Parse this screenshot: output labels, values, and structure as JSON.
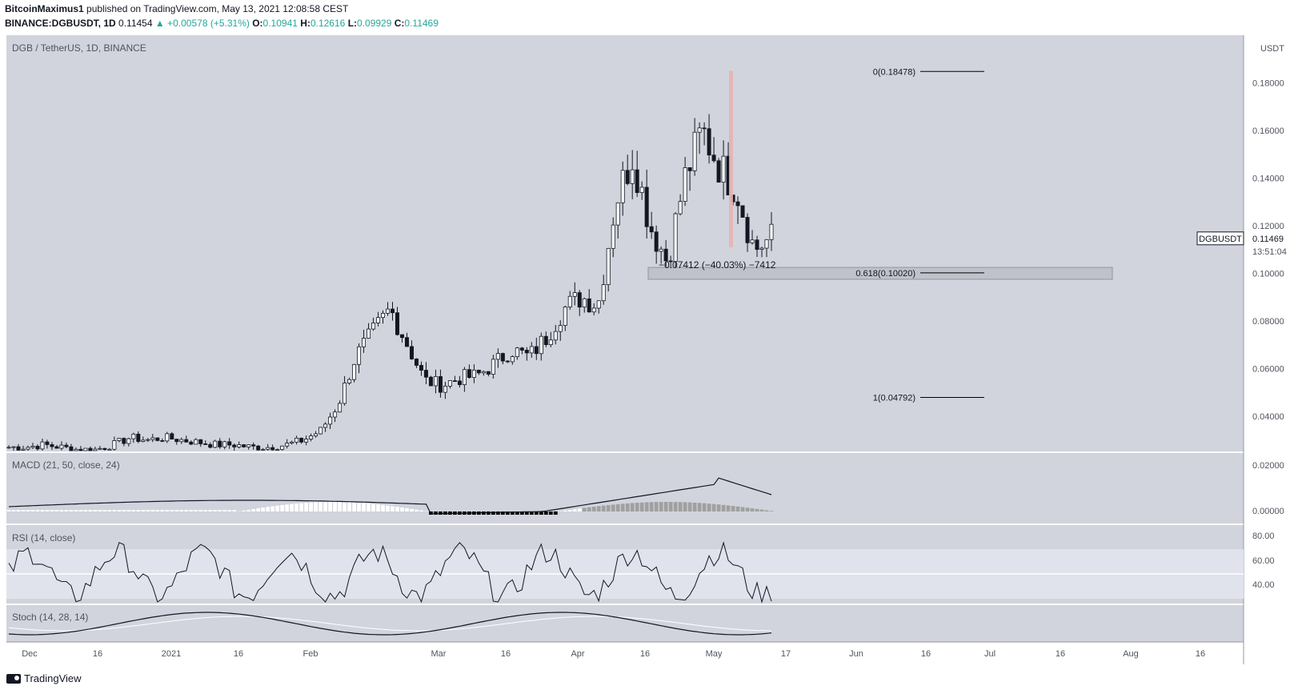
{
  "header": {
    "publisher": "BitcoinMaximus1",
    "published_text": " published on TradingView.com, May 13, 2021 12:08:58 CEST",
    "symbol": "BINANCE:DGBUSDT, 1D",
    "last": "0.11454",
    "change": "+0.00578 (+5.31%)",
    "open_label": "O:",
    "open": "0.10941",
    "high_label": "H:",
    "high": "0.12616",
    "low_label": "L:",
    "low": "0.09929",
    "close_label": "C:",
    "close": "0.11469",
    "change_arrow": "▲"
  },
  "footer": {
    "brand": "TradingView"
  },
  "colors": {
    "panel_bg": "#d1d4dc",
    "candle": "#131722",
    "highlight_bar": "#e6b3b3",
    "hist_pos_light": "#ffffff",
    "hist_pos_dark": "#a0a0a0",
    "hist_neg": "#000000",
    "rsi_band": "#e0e3eb"
  },
  "chart_data": {
    "type": "candlestick",
    "title": "DGB / TetherUS, 1D, BINANCE",
    "currency": "USDT",
    "price_axis": {
      "ticks": [
        "0.18000",
        "0.16000",
        "0.14000",
        "0.12000",
        "0.10000",
        "0.08000",
        "0.06000",
        "0.04000"
      ],
      "ylim": [
        0.028,
        0.19
      ]
    },
    "x_ticks": [
      "Dec",
      "16",
      "2021",
      "16",
      "Feb",
      "Mar",
      "16",
      "Apr",
      "16",
      "May",
      "17",
      "Jun",
      "16",
      "Jul",
      "16",
      "Aug",
      "16"
    ],
    "price_label": {
      "symbol": "DGBUSDT",
      "value": "0.11469",
      "countdown": "13:51:04"
    },
    "fib_levels": [
      {
        "label": "0(0.18478)",
        "value": 0.18478
      },
      {
        "label": "0.618(0.10020)",
        "value": 0.1002
      },
      {
        "label": "1(0.04792)",
        "value": 0.04792
      }
    ],
    "measure_text": "−0.07412 (−40.03%) −7412",
    "support_zone": [
      0.0975,
      0.1025
    ],
    "closes_per_week_sample": [
      0.027,
      0.027,
      0.028,
      0.027,
      0.026,
      0.026,
      0.028,
      0.031,
      0.03,
      0.031,
      0.03,
      0.029,
      0.028,
      0.028,
      0.027,
      0.027,
      0.028,
      0.03,
      0.034,
      0.045,
      0.065,
      0.075,
      0.085,
      0.07,
      0.055,
      0.053,
      0.056,
      0.057,
      0.062,
      0.068,
      0.065,
      0.073,
      0.085,
      0.09,
      0.087,
      0.13,
      0.15,
      0.12,
      0.105,
      0.14,
      0.16,
      0.145,
      0.135,
      0.11,
      0.115
    ],
    "macd": {
      "label": "MACD (21, 50, close, 24)",
      "ticks": [
        "0.02000",
        "0.00000"
      ]
    },
    "rsi": {
      "label": "RSI (14, close)",
      "ticks": [
        "80.00",
        "60.00",
        "40.00"
      ]
    },
    "stoch": {
      "label": "Stoch (14, 28, 14)"
    }
  }
}
